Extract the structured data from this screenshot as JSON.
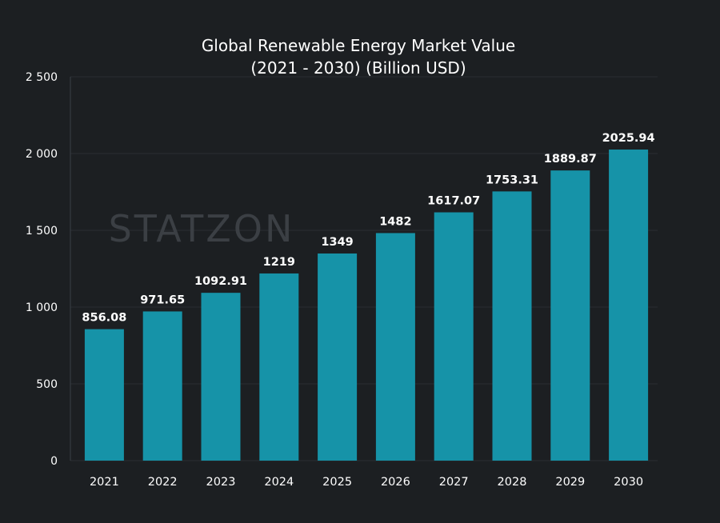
{
  "chart_data": {
    "type": "bar",
    "title_lines": [
      "Global Renewable Energy Market Value",
      "(2021 - 2030) (Billion USD)"
    ],
    "xlabel": "",
    "ylabel": "",
    "categories": [
      "2021",
      "2022",
      "2023",
      "2024",
      "2025",
      "2026",
      "2027",
      "2028",
      "2029",
      "2030"
    ],
    "values": [
      856.08,
      971.65,
      1092.91,
      1219,
      1349,
      1482,
      1617.07,
      1753.31,
      1889.87,
      2025.94
    ],
    "value_labels": [
      "856.08",
      "971.65",
      "1092.91",
      "1219",
      "1349",
      "1482",
      "1617.07",
      "1753.31",
      "1889.87",
      "2025.94"
    ],
    "ylim": [
      0,
      2500
    ],
    "yticks": [
      0,
      500,
      1000,
      1500,
      2000,
      2500
    ],
    "ytick_labels": [
      "0",
      "500",
      "1 000",
      "1 500",
      "2 000",
      "2 500"
    ],
    "grid": true,
    "legend": "none",
    "bar_color": "#1693a8",
    "background_color": "#1c1f22",
    "watermark": "STATZON"
  }
}
